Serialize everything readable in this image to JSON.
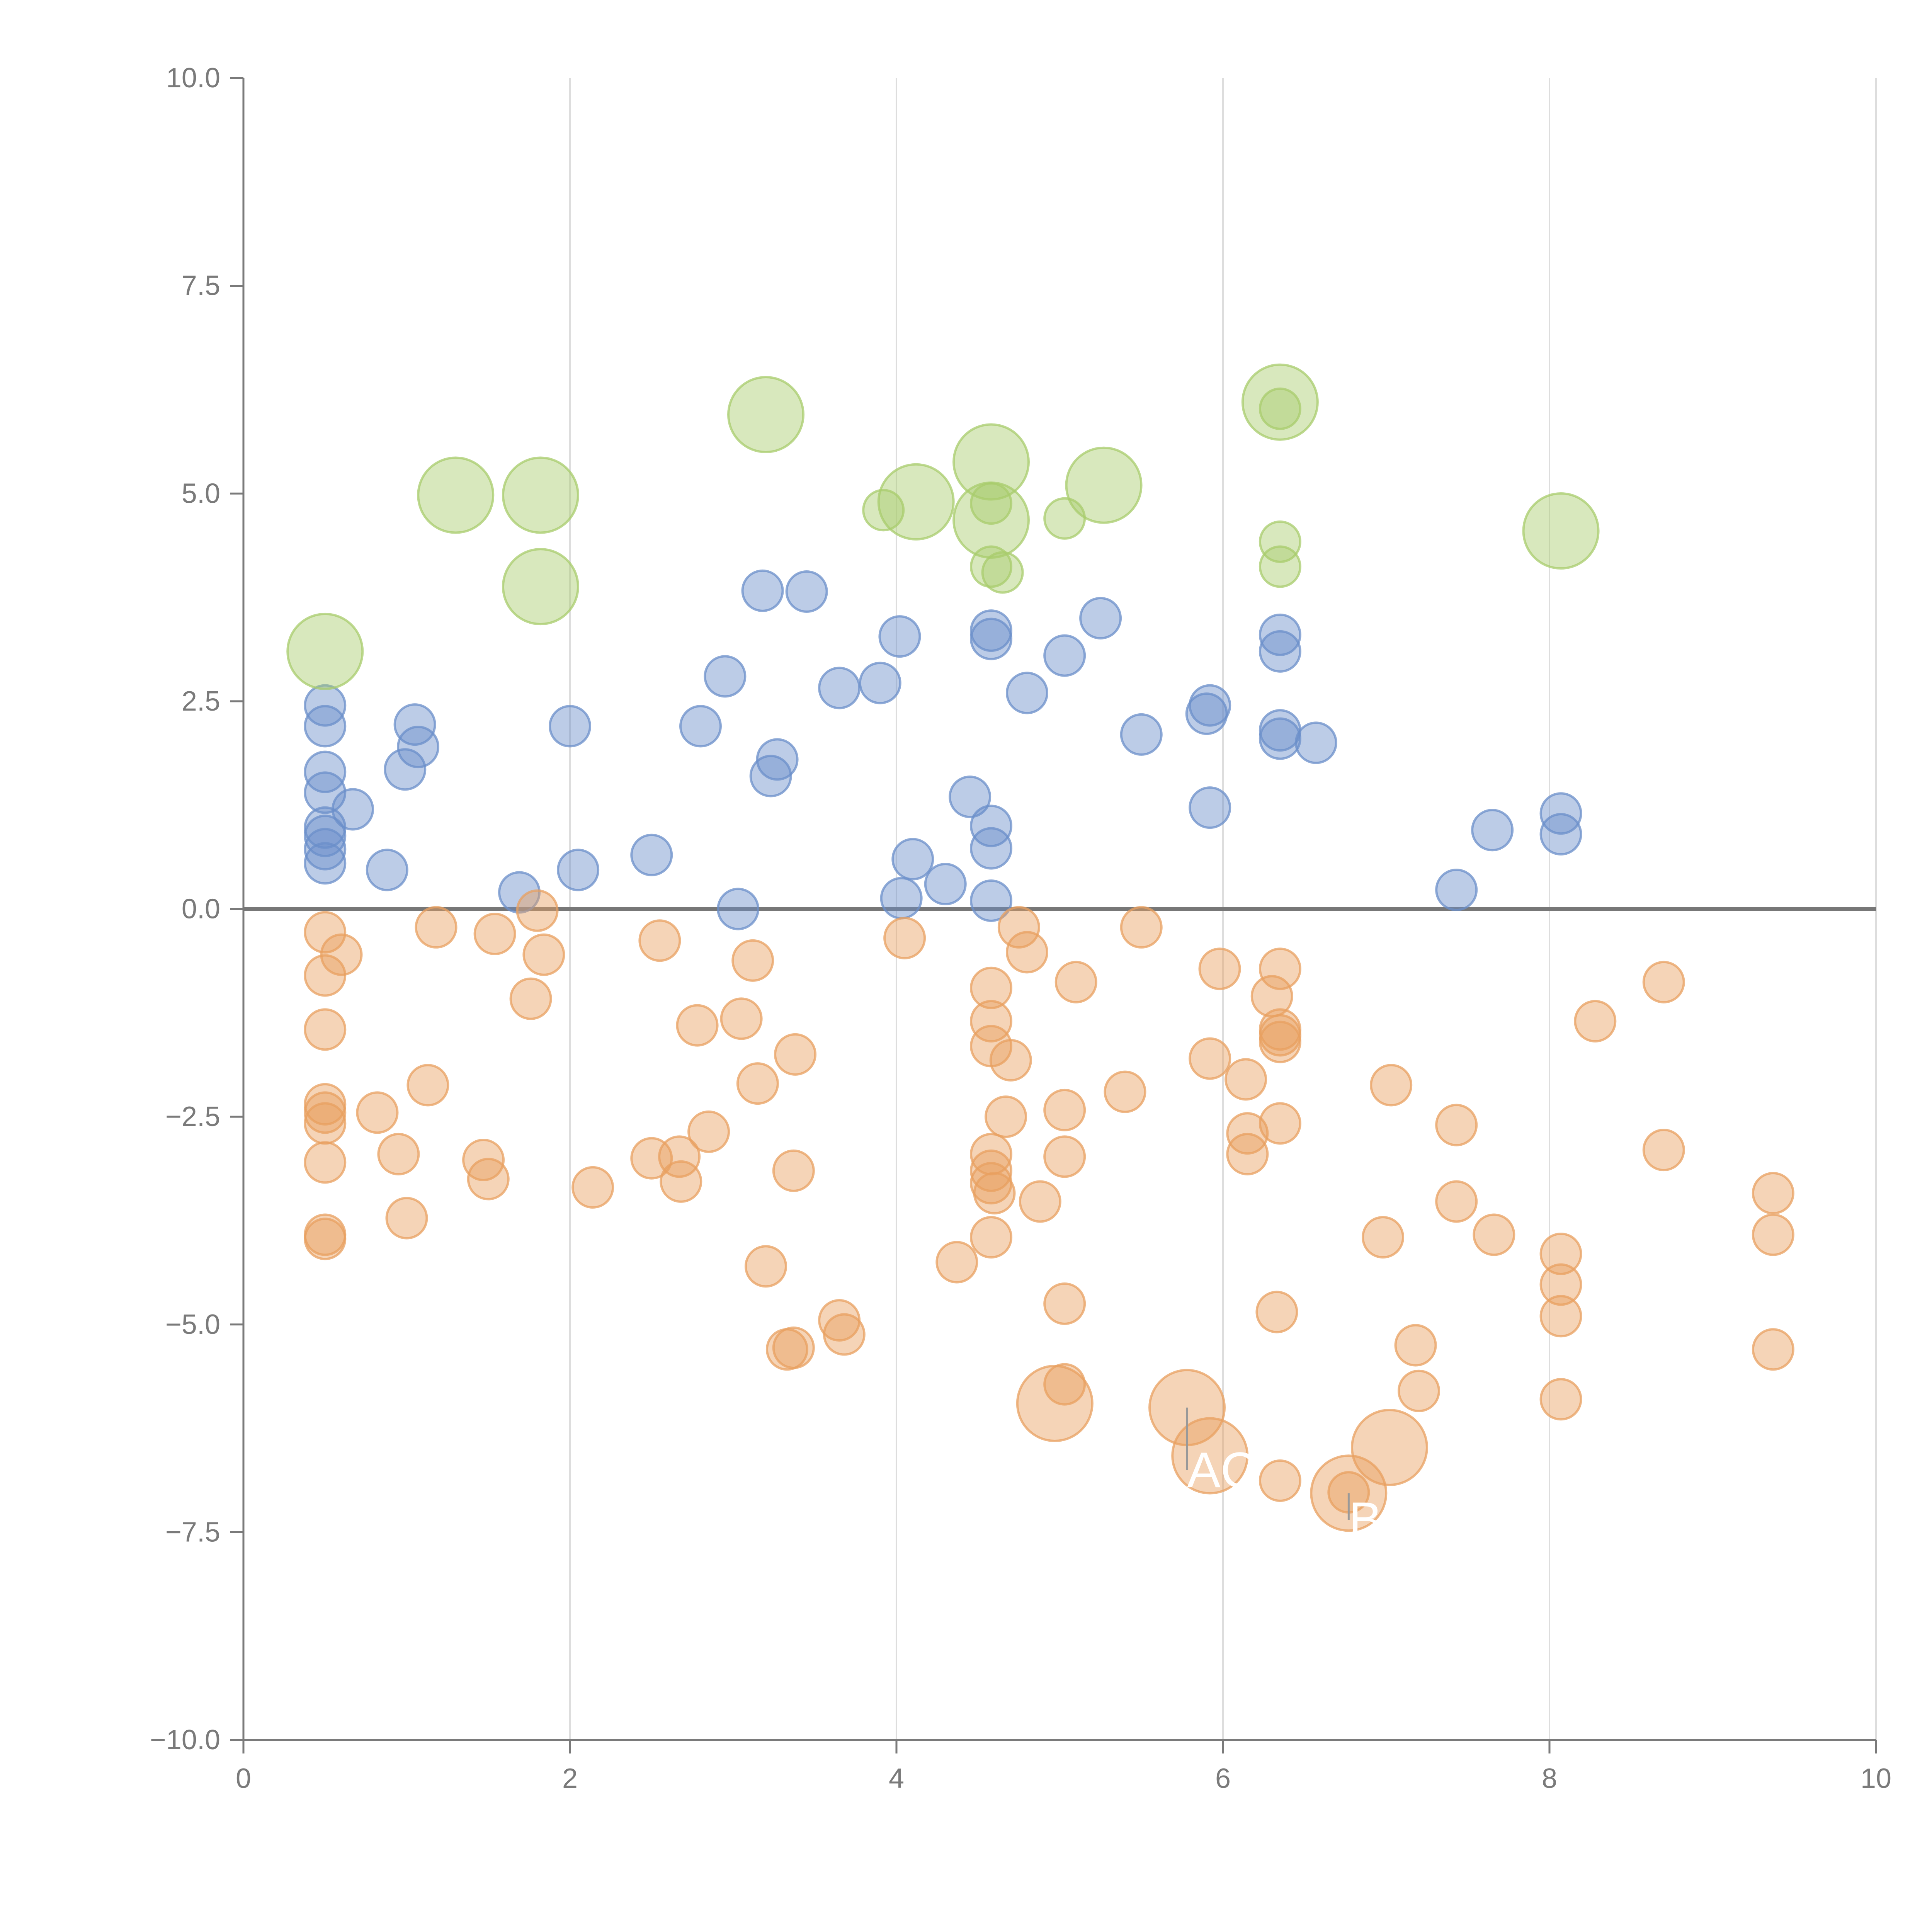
{
  "chart_data": {
    "type": "scatter",
    "title": "",
    "xlabel": "",
    "ylabel": "",
    "xlim": [
      0,
      10
    ],
    "ylim": [
      -10,
      10
    ],
    "x_ticks": [
      0,
      2,
      4,
      6,
      8,
      10
    ],
    "x_tick_labels": [
      "0",
      "2",
      "4",
      "6",
      "8",
      "10"
    ],
    "y_ticks": [
      -10,
      -7.5,
      -5,
      -2.5,
      0,
      2.5,
      5,
      7.5,
      10
    ],
    "y_tick_labels": [
      "−10.0",
      "−7.5",
      "−5.0",
      "−2.5",
      "0.0",
      "2.5",
      "5.0",
      "7.5",
      "10.0"
    ],
    "grid": {
      "vertical": true,
      "horizontal": false
    },
    "zero_line": true,
    "colors": {
      "blue": "#6b8fc9",
      "orange": "#e8a060",
      "green": "#a8cc6c",
      "axis": "#7a7a7a",
      "grid": "#dddddd",
      "zero_line": "#777777"
    },
    "series": [
      {
        "color_key": "blue",
        "size": "small",
        "points": [
          [
            0.5,
            2.45
          ],
          [
            0.5,
            2.2
          ],
          [
            0.5,
            1.65
          ],
          [
            0.5,
            1.4
          ],
          [
            0.5,
            0.98
          ],
          [
            0.5,
            0.88
          ],
          [
            0.5,
            0.72
          ],
          [
            0.5,
            0.55
          ],
          [
            0.67,
            1.2
          ],
          [
            0.88,
            0.47
          ],
          [
            0.99,
            1.68
          ],
          [
            1.05,
            2.22
          ],
          [
            1.07,
            1.95
          ],
          [
            1.69,
            0.2
          ],
          [
            2.0,
            2.2
          ],
          [
            2.05,
            0.47
          ],
          [
            2.5,
            0.65
          ],
          [
            2.8,
            2.2
          ],
          [
            2.95,
            2.8
          ],
          [
            3.03,
            0.0
          ],
          [
            3.18,
            3.83
          ],
          [
            3.23,
            1.6
          ],
          [
            3.27,
            1.8
          ],
          [
            3.45,
            3.82
          ],
          [
            3.65,
            2.66
          ],
          [
            3.9,
            2.72
          ],
          [
            4.02,
            3.28
          ],
          [
            4.03,
            0.13
          ],
          [
            4.1,
            0.6
          ],
          [
            4.3,
            0.3
          ],
          [
            4.45,
            1.35
          ],
          [
            4.58,
            3.35
          ],
          [
            4.58,
            3.25
          ],
          [
            4.58,
            1.0
          ],
          [
            4.58,
            0.73
          ],
          [
            4.58,
            0.1
          ],
          [
            4.8,
            2.6
          ],
          [
            5.03,
            3.05
          ],
          [
            5.25,
            3.5
          ],
          [
            5.5,
            2.1
          ],
          [
            5.9,
            2.35
          ],
          [
            5.92,
            2.45
          ],
          [
            5.92,
            1.22
          ],
          [
            6.35,
            3.3
          ],
          [
            6.35,
            3.1
          ],
          [
            6.35,
            2.15
          ],
          [
            6.35,
            2.05
          ],
          [
            6.57,
            2.0
          ],
          [
            7.43,
            0.23
          ],
          [
            7.65,
            0.95
          ],
          [
            8.07,
            1.15
          ],
          [
            8.07,
            0.9
          ]
        ]
      },
      {
        "color_key": "orange",
        "size": "small",
        "points": [
          [
            0.5,
            -0.28
          ],
          [
            0.5,
            -0.8
          ],
          [
            0.5,
            -1.45
          ],
          [
            0.5,
            -2.35
          ],
          [
            0.5,
            -2.45
          ],
          [
            0.5,
            -2.58
          ],
          [
            0.5,
            -3.05
          ],
          [
            0.5,
            -3.92
          ],
          [
            0.5,
            -3.97
          ],
          [
            0.6,
            -0.55
          ],
          [
            0.82,
            -2.45
          ],
          [
            0.95,
            -2.95
          ],
          [
            1.0,
            -3.72
          ],
          [
            1.13,
            -2.12
          ],
          [
            1.18,
            -0.22
          ],
          [
            1.47,
            -3.02
          ],
          [
            1.5,
            -3.25
          ],
          [
            1.54,
            -0.3
          ],
          [
            1.76,
            -1.08
          ],
          [
            1.8,
            -0.02
          ],
          [
            1.84,
            -0.55
          ],
          [
            2.14,
            -3.35
          ],
          [
            2.5,
            -3.0
          ],
          [
            2.55,
            -0.38
          ],
          [
            2.67,
            -2.98
          ],
          [
            2.68,
            -3.28
          ],
          [
            2.78,
            -1.4
          ],
          [
            2.85,
            -2.68
          ],
          [
            3.05,
            -1.32
          ],
          [
            3.12,
            -0.62
          ],
          [
            3.15,
            -2.1
          ],
          [
            3.2,
            -4.3
          ],
          [
            3.33,
            -5.3
          ],
          [
            3.37,
            -5.28
          ],
          [
            3.37,
            -3.15
          ],
          [
            3.38,
            -1.75
          ],
          [
            3.65,
            -4.95
          ],
          [
            3.68,
            -5.12
          ],
          [
            4.05,
            -0.35
          ],
          [
            4.37,
            -4.25
          ],
          [
            4.58,
            -0.95
          ],
          [
            4.58,
            -1.35
          ],
          [
            4.58,
            -1.65
          ],
          [
            4.58,
            -2.95
          ],
          [
            4.58,
            -3.15
          ],
          [
            4.58,
            -3.3
          ],
          [
            4.6,
            -3.42
          ],
          [
            4.58,
            -3.95
          ],
          [
            4.67,
            -2.5
          ],
          [
            4.7,
            -1.82
          ],
          [
            4.75,
            -0.22
          ],
          [
            4.8,
            -0.52
          ],
          [
            4.88,
            -3.52
          ],
          [
            5.03,
            -2.42
          ],
          [
            5.03,
            -2.98
          ],
          [
            5.03,
            -4.75
          ],
          [
            5.03,
            -5.72
          ],
          [
            5.1,
            -0.88
          ],
          [
            5.4,
            -2.2
          ],
          [
            5.5,
            -0.22
          ],
          [
            5.92,
            -1.8
          ],
          [
            5.98,
            -0.72
          ],
          [
            6.14,
            -2.05
          ],
          [
            6.15,
            -2.7
          ],
          [
            6.15,
            -2.95
          ],
          [
            6.3,
            -1.05
          ],
          [
            6.33,
            -4.85
          ],
          [
            6.35,
            -0.72
          ],
          [
            6.35,
            -1.45
          ],
          [
            6.35,
            -1.52
          ],
          [
            6.35,
            -1.6
          ],
          [
            6.35,
            -2.58
          ],
          [
            6.35,
            -6.88
          ],
          [
            6.77,
            -7.02
          ],
          [
            6.98,
            -3.95
          ],
          [
            7.03,
            -2.12
          ],
          [
            7.18,
            -5.25
          ],
          [
            7.2,
            -5.8
          ],
          [
            7.43,
            -2.6
          ],
          [
            7.43,
            -3.52
          ],
          [
            7.66,
            -3.92
          ],
          [
            8.07,
            -4.15
          ],
          [
            8.07,
            -4.52
          ],
          [
            8.07,
            -4.9
          ],
          [
            8.07,
            -5.9
          ],
          [
            8.28,
            -1.35
          ],
          [
            8.7,
            -0.88
          ],
          [
            8.7,
            -2.9
          ],
          [
            9.37,
            -3.42
          ],
          [
            9.37,
            -3.92
          ],
          [
            9.37,
            -5.3
          ]
        ]
      },
      {
        "color_key": "orange",
        "size": "large",
        "points": [
          [
            4.97,
            -5.95
          ],
          [
            5.78,
            -6.0
          ],
          [
            5.92,
            -6.58
          ],
          [
            6.77,
            -7.03
          ],
          [
            7.02,
            -6.48
          ]
        ]
      },
      {
        "color_key": "green",
        "size": "small",
        "points": [
          [
            3.92,
            4.8
          ],
          [
            4.58,
            4.88
          ],
          [
            4.58,
            4.12
          ],
          [
            4.65,
            4.05
          ],
          [
            5.03,
            4.7
          ],
          [
            6.35,
            6.02
          ],
          [
            6.35,
            4.42
          ],
          [
            6.35,
            4.12
          ]
        ]
      },
      {
        "color_key": "green",
        "size": "large",
        "points": [
          [
            0.5,
            3.1
          ],
          [
            1.3,
            4.98
          ],
          [
            1.82,
            4.98
          ],
          [
            1.82,
            3.88
          ],
          [
            3.2,
            5.95
          ],
          [
            4.12,
            4.9
          ],
          [
            4.58,
            5.38
          ],
          [
            4.58,
            4.68
          ],
          [
            5.27,
            5.1
          ],
          [
            6.35,
            6.1
          ],
          [
            8.07,
            4.55
          ]
        ]
      }
    ],
    "annotations": [
      {
        "text": "AC",
        "x": 5.78,
        "y": -6.75,
        "leader_to": [
          5.78,
          -6.0
        ]
      },
      {
        "text": "B",
        "x": 6.77,
        "y": -7.35,
        "leader_to": [
          6.77,
          -7.03
        ]
      }
    ]
  }
}
